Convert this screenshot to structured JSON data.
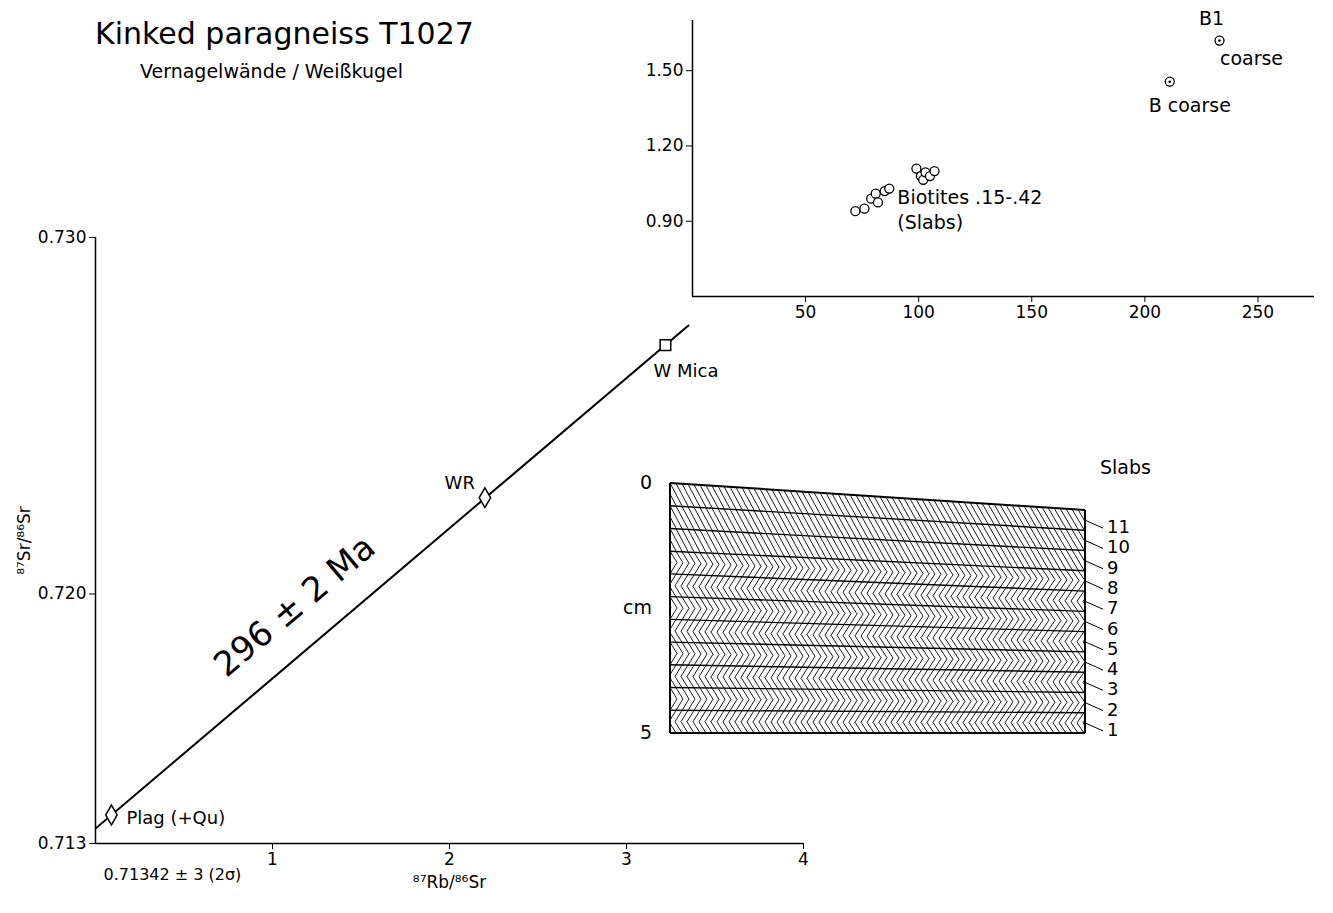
{
  "chart_data": [
    {
      "type": "scatter",
      "title": "Kinked paragneiss T1027",
      "subtitle": "Vernagelwände / Weißkugel",
      "x_label": "⁸⁷Rb/⁸⁶Sr",
      "y_label": "⁸⁷Sr/⁸⁶Sr",
      "xlim": [
        0,
        4
      ],
      "xticks": [
        1,
        2,
        3,
        4
      ],
      "ylim": [
        0.713,
        0.73
      ],
      "yticks": [
        0.713,
        {
          "value": 0.72,
          "label": "0.720"
        },
        {
          "value": 0.73,
          "label": "0.730"
        }
      ],
      "series": [
        {
          "name": "Plag (+Qu)",
          "marker": "diamond",
          "x": [
            0.09
          ],
          "values": [
            0.7138
          ]
        },
        {
          "name": "WR",
          "marker": "diamond",
          "x": [
            2.2
          ],
          "values": [
            0.7227
          ]
        },
        {
          "name": "W Mica",
          "marker": "square",
          "x": [
            3.22
          ],
          "values": [
            0.72698
          ]
        },
        {
          "name": "296 ± 2 Ma",
          "type": "line",
          "x": [
            0,
            3.35
          ],
          "values": [
            0.71342,
            0.72753
          ]
        }
      ],
      "annotations": [
        {
          "text": "0.71342 ± 3 (2σ)",
          "x": 0,
          "y": 0.71342
        }
      ]
    },
    {
      "type": "scatter",
      "xlim": [
        0,
        275
      ],
      "xticks": [
        50,
        100,
        150,
        200,
        250
      ],
      "ylim": [
        0.6,
        1.7
      ],
      "yticks": [
        {
          "value": 0.9,
          "label": "0.90"
        },
        {
          "value": 1.2,
          "label": "1.20"
        },
        {
          "value": 1.5,
          "label": "1.50"
        }
      ],
      "series": [
        {
          "labels": [
            "Biotites .15-.42",
            "(Slabs)"
          ],
          "marker": "circle",
          "x": [
            72,
            76,
            79,
            81,
            82,
            85,
            87,
            99,
            101,
            102,
            103,
            105,
            107
          ],
          "values": [
            0.94,
            0.95,
            0.99,
            1.01,
            0.975,
            1.02,
            1.03,
            1.11,
            1.08,
            1.065,
            1.095,
            1.08,
            1.1
          ]
        },
        {
          "labels": [
            "B coarse"
          ],
          "marker": "circle_dot",
          "x": [
            211
          ],
          "values": [
            1.456
          ]
        },
        {
          "labels": [
            "B1",
            "coarse"
          ],
          "marker": "circle_dot",
          "x": [
            233
          ],
          "values": [
            1.62
          ]
        }
      ]
    }
  ],
  "diagram": {
    "title": "Slabs",
    "y_label": "cm",
    "ylim": [
      0,
      5
    ],
    "yticks": [
      0,
      5
    ],
    "slabs": [
      1,
      2,
      3,
      4,
      5,
      6,
      7,
      8,
      9,
      10,
      11
    ]
  }
}
